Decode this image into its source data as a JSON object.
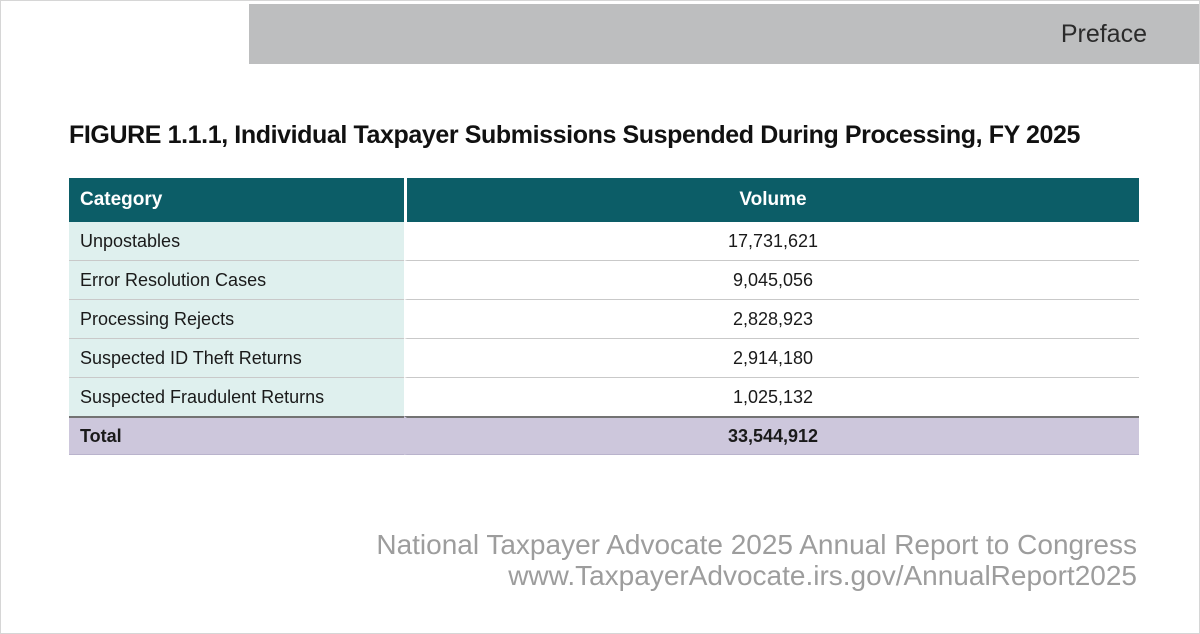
{
  "colors": {
    "teal": "#0c5d67",
    "light_teal": "#dff0ee",
    "lavender": "#cdc7dc",
    "banner_gray": "#bdbebf",
    "row_divider": "#c9c9c9",
    "total_divider": "#737373",
    "total_bottom": "#b9b3cc",
    "text_dark": "#1a1a1a",
    "footer_gray": "#9d9d9d",
    "page_border": "#d6d6d6"
  },
  "banner": {
    "label": "Preface"
  },
  "figure": {
    "title": "FIGURE 1.1.1, Individual Taxpayer Submissions Suspended During Processing, FY 2025"
  },
  "table": {
    "headers": [
      "Category",
      "Volume"
    ],
    "rows": [
      {
        "category": "Unpostables",
        "volume": "17,731,621"
      },
      {
        "category": "Error Resolution Cases",
        "volume": "9,045,056"
      },
      {
        "category": "Processing Rejects",
        "volume": "2,828,923"
      },
      {
        "category": "Suspected ID Theft Returns",
        "volume": "2,914,180"
      },
      {
        "category": "Suspected Fraudulent Returns",
        "volume": "1,025,132"
      }
    ],
    "total": {
      "category": "Total",
      "volume": "33,544,912"
    }
  },
  "footer": {
    "line1": "National Taxpayer Advocate 2025 Annual Report to Congress",
    "line2": "www.TaxpayerAdvocate.irs.gov/AnnualReport2025"
  },
  "chart_data": {
    "type": "table",
    "title": "FIGURE 1.1.1, Individual Taxpayer Submissions Suspended During Processing, FY 2025",
    "columns": [
      "Category",
      "Volume"
    ],
    "categories": [
      "Unpostables",
      "Error Resolution Cases",
      "Processing Rejects",
      "Suspected ID Theft Returns",
      "Suspected Fraudulent Returns"
    ],
    "values": [
      17731621,
      9045056,
      2828923,
      2914180,
      1025132
    ],
    "total_label": "Total",
    "total": 33544912
  }
}
